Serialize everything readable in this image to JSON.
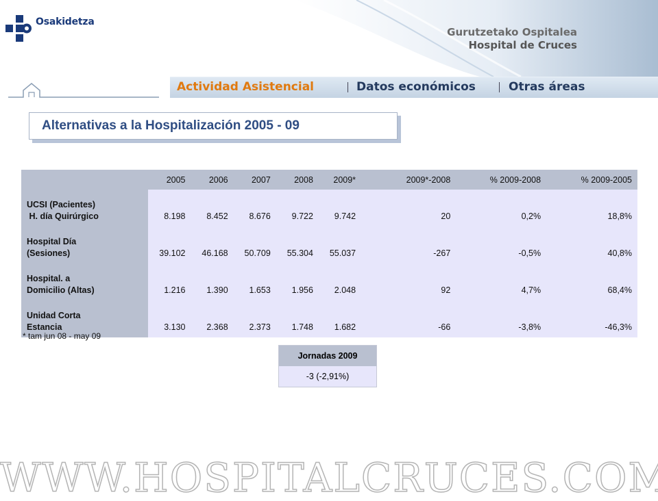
{
  "header": {
    "logo_text": "Osakidetza",
    "hospital_line1": "Gurutzetako Ospitalea",
    "hospital_line2": "Hospital de Cruces"
  },
  "nav": {
    "items": [
      {
        "label": "Actividad Asistencial",
        "active": true
      },
      {
        "label": "Datos económicos",
        "active": false
      },
      {
        "label": "Otras áreas",
        "active": false
      }
    ]
  },
  "title": "Alternativas a la Hospitalización 2005 - 09",
  "table": {
    "columns": [
      "2005",
      "2006",
      "2007",
      "2008",
      "2009*",
      "2009*-2008",
      "% 2009-2008",
      "% 2009-2005"
    ],
    "rows": [
      {
        "label1": "UCSI (Pacientes)",
        "label2": " H. día Quirúrgico",
        "values": [
          "8.198",
          "8.452",
          "8.676",
          "9.722",
          "9.742",
          "20",
          "0,2%",
          "18,8%"
        ]
      },
      {
        "label1": "Hospital Día",
        "label2": "(Sesiones)",
        "values": [
          "39.102",
          "46.168",
          "50.709",
          "55.304",
          "55.037",
          "-267",
          "-0,5%",
          "40,8%"
        ]
      },
      {
        "label1": "Hospital. a",
        "label2": "Domicilio (Altas)",
        "values": [
          "1.216",
          "1.390",
          "1.653",
          "1.956",
          "2.048",
          "92",
          "4,7%",
          "68,4%"
        ]
      },
      {
        "label1": "Unidad Corta",
        "label2": "Estancia",
        "values": [
          "3.130",
          "2.368",
          "2.373",
          "1.748",
          "1.682",
          "-66",
          "-3,8%",
          "-46,3%"
        ]
      }
    ]
  },
  "footnote": "* tam jun 08 - may 09",
  "jornadas": {
    "header": "Jornadas 2009",
    "value": "-3 (-2,91%)"
  },
  "watermark": "WWW.HOSPITALCRUCES.COM",
  "colors": {
    "accent": "#e07a10",
    "nav_text": "#243a5e",
    "title_text": "#2f4d83",
    "header_cell": "#b9c0d0",
    "data_cell": "#e7e6fb"
  }
}
